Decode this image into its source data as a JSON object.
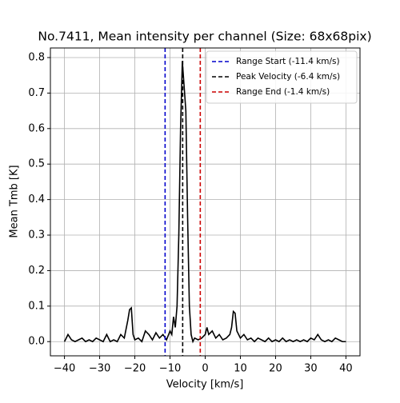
{
  "chart_data": {
    "type": "line",
    "title": "No.7411, Mean intensity per channel (Size: 68x68pix)",
    "x_label": "Velocity [km/s]",
    "y_label": "Mean Tmb [K]",
    "x": [
      -40,
      -39,
      -38,
      -37,
      -36,
      -35,
      -34,
      -33,
      -32,
      -31,
      -30,
      -29,
      -28,
      -27,
      -26,
      -25,
      -24,
      -23,
      -22,
      -21.5,
      -21,
      -20.5,
      -20,
      -19,
      -18,
      -17,
      -16,
      -15,
      -14,
      -13,
      -12,
      -11,
      -10,
      -9.5,
      -9,
      -8.5,
      -8,
      -7.5,
      -7,
      -6.5,
      -6,
      -5.5,
      -5,
      -4.5,
      -4,
      -3.5,
      -3,
      -2,
      -1,
      0,
      0.5,
      1,
      2,
      3,
      4,
      5,
      6,
      7,
      7.5,
      8,
      8.5,
      9,
      10,
      11,
      12,
      13,
      14,
      15,
      16,
      17,
      18,
      19,
      20,
      21,
      22,
      23,
      24,
      25,
      26,
      27,
      28,
      29,
      30,
      31,
      32,
      33,
      34,
      35,
      36,
      37,
      38,
      39,
      40
    ],
    "series": [
      {
        "name": "spectrum",
        "color": "#000000",
        "values": [
          0.0,
          0.02,
          0.005,
          0.0,
          0.005,
          0.01,
          0.0,
          0.005,
          0.0,
          0.01,
          0.005,
          0.0,
          0.02,
          0.0,
          0.005,
          0.0,
          0.02,
          0.01,
          0.06,
          0.09,
          0.095,
          0.02,
          0.005,
          0.01,
          0.0,
          0.03,
          0.02,
          0.005,
          0.025,
          0.01,
          0.02,
          0.005,
          0.03,
          0.02,
          0.07,
          0.04,
          0.1,
          0.3,
          0.6,
          0.79,
          0.72,
          0.65,
          0.35,
          0.1,
          0.02,
          0.0,
          0.01,
          0.005,
          0.01,
          0.02,
          0.04,
          0.02,
          0.03,
          0.01,
          0.02,
          0.005,
          0.01,
          0.02,
          0.04,
          0.085,
          0.08,
          0.03,
          0.01,
          0.02,
          0.005,
          0.01,
          0.0,
          0.01,
          0.005,
          0.0,
          0.01,
          0.0,
          0.005,
          0.0,
          0.01,
          0.0,
          0.005,
          0.0,
          0.005,
          0.0,
          0.005,
          0.0,
          0.01,
          0.005,
          0.02,
          0.005,
          0.0,
          0.005,
          0.0,
          0.01,
          0.005,
          0.0,
          0.0
        ]
      }
    ],
    "vlines": [
      {
        "name": "Range Start (-11.4 km/s)",
        "value": -11.4,
        "color": "#0000cc"
      },
      {
        "name": "Peak Velocity (-6.4 km/s)",
        "value": -6.4,
        "color": "#000000"
      },
      {
        "name": "Range End (-1.4 km/s)",
        "value": -1.4,
        "color": "#cc0000"
      }
    ],
    "xlim": [
      -44,
      44
    ],
    "ylim": [
      -0.04,
      0.827
    ],
    "xticks": [
      {
        "value": -40,
        "label": "−40"
      },
      {
        "value": -30,
        "label": "−30"
      },
      {
        "value": -20,
        "label": "−20"
      },
      {
        "value": -10,
        "label": "−10"
      },
      0,
      10,
      20,
      30,
      40
    ],
    "yticks": [
      {
        "value": 0,
        "label": "0.0"
      },
      0.1,
      0.2,
      0.3,
      0.4,
      0.5,
      0.6,
      0.7,
      0.8
    ],
    "grid": true,
    "legend": "upper right"
  }
}
